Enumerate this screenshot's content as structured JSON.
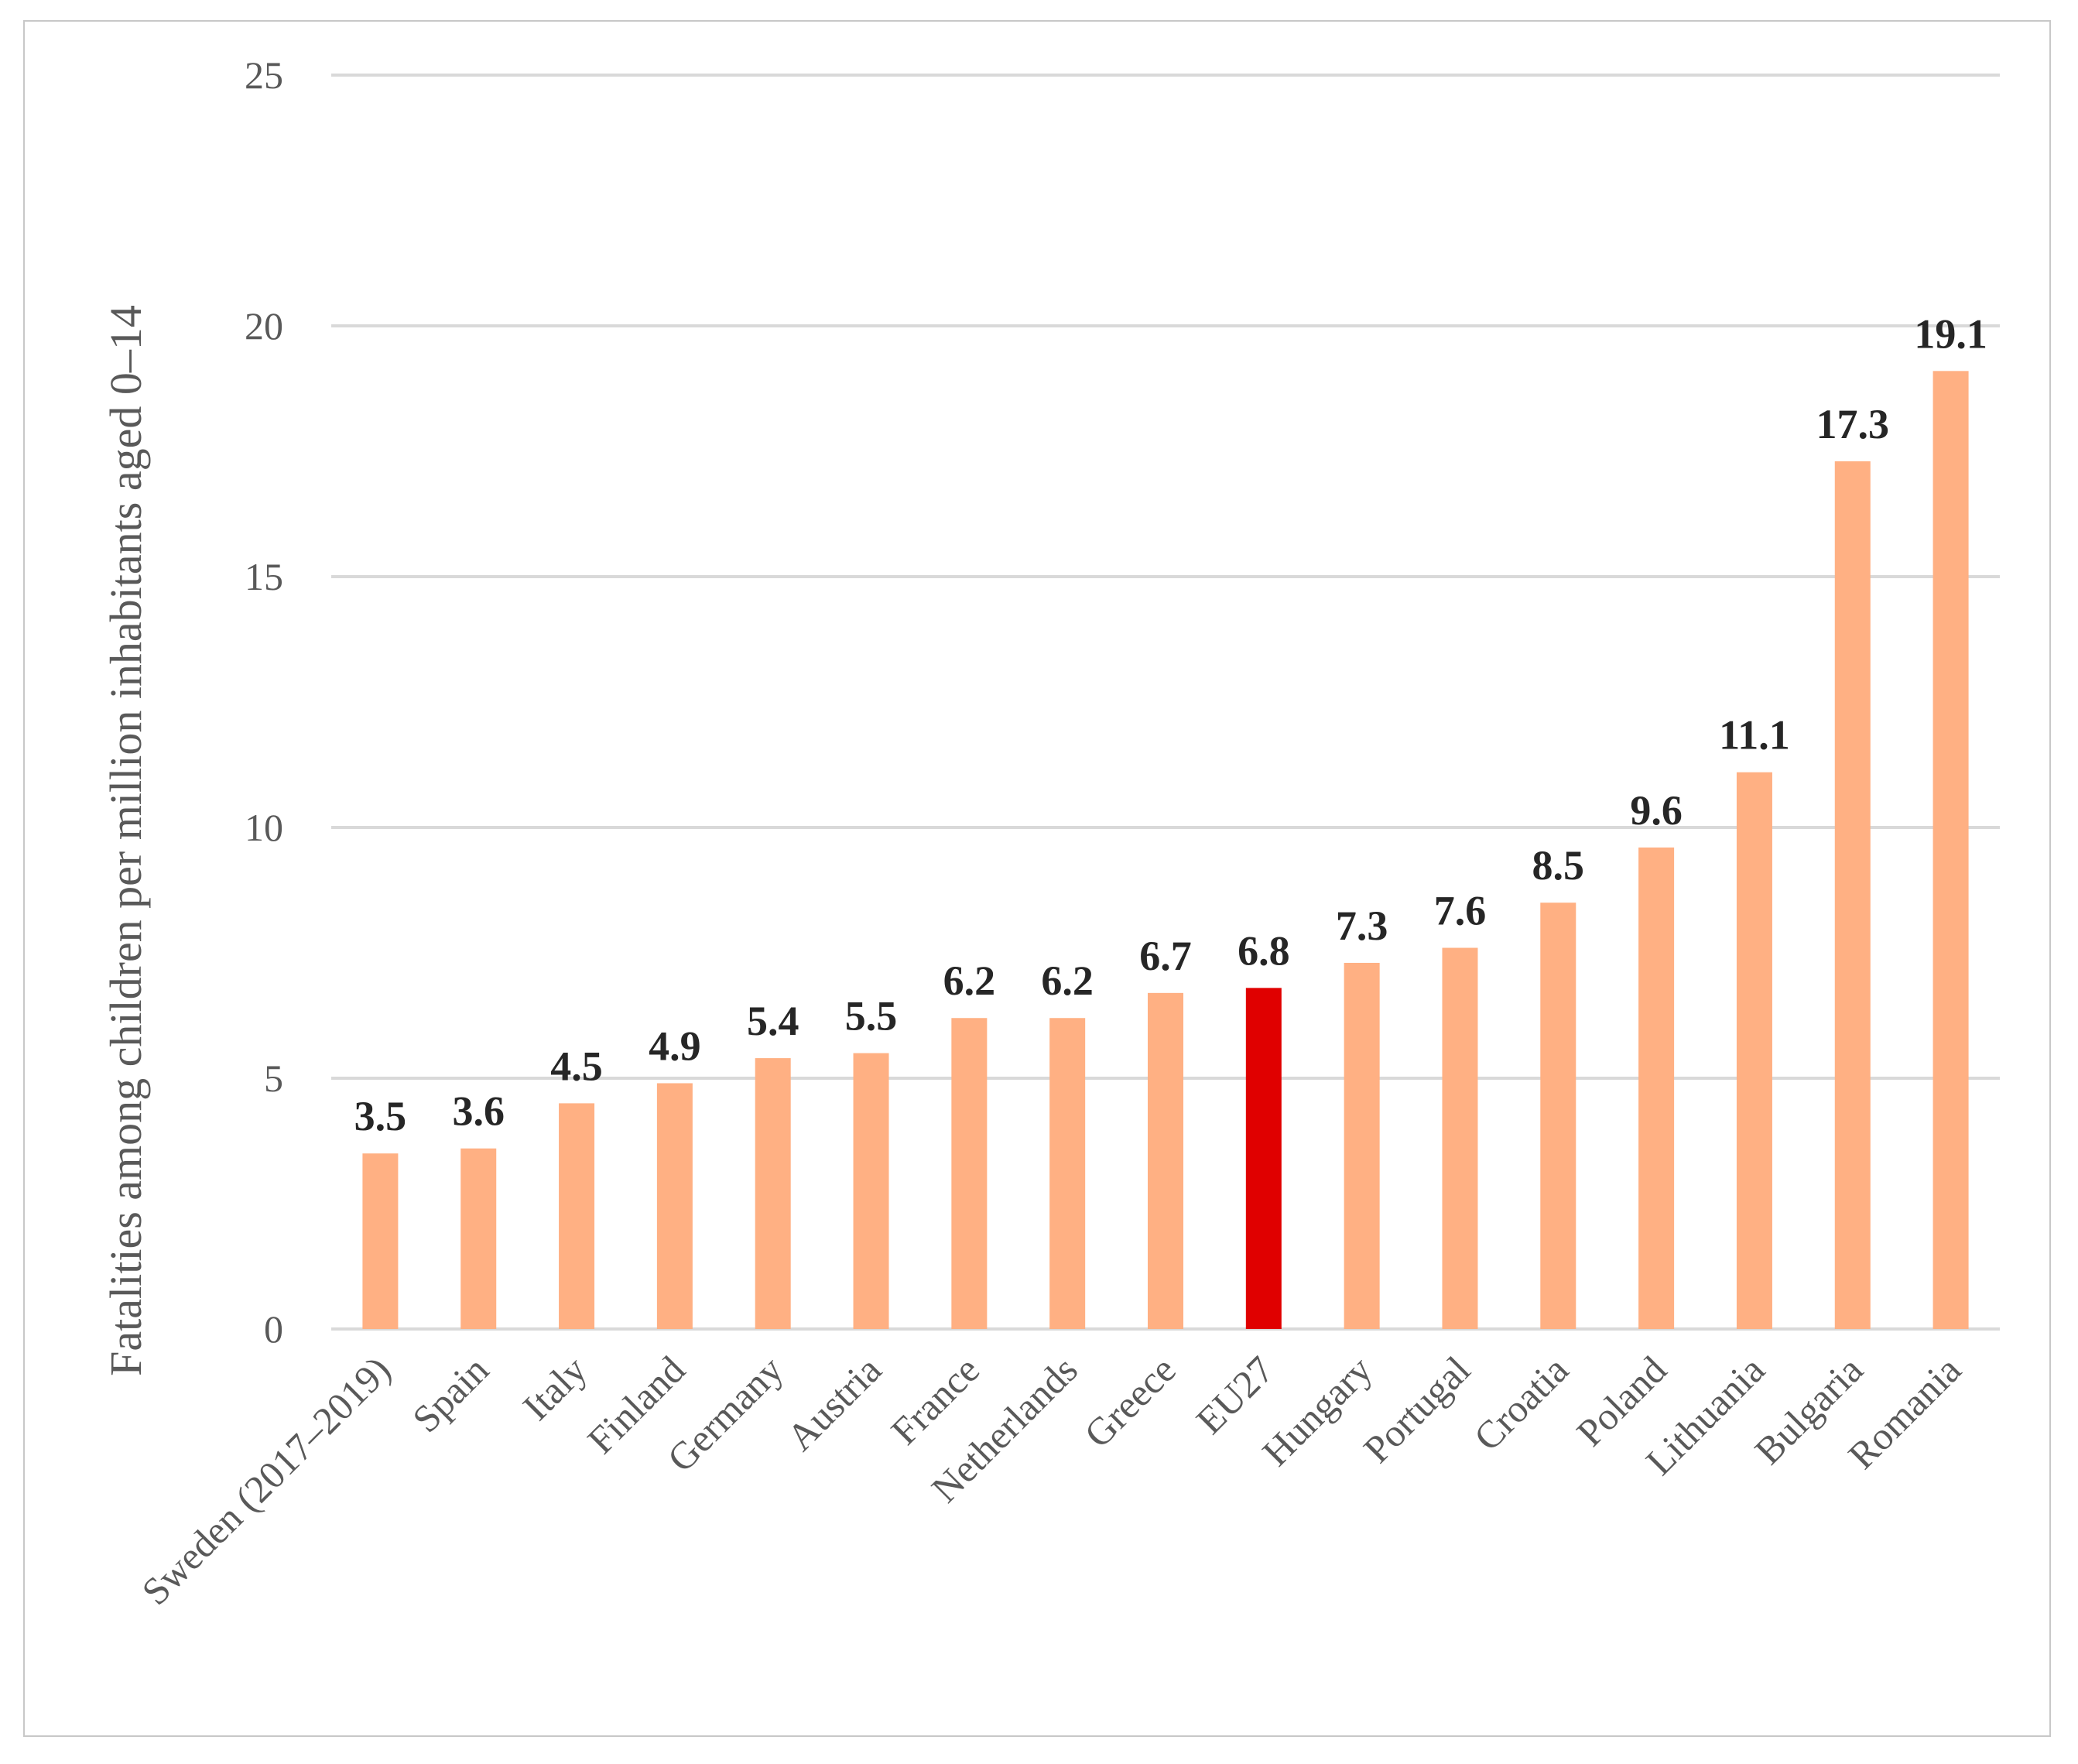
{
  "chart_data": {
    "type": "bar",
    "title": "",
    "xlabel": "",
    "ylabel": "Fatalities among children per million inhabitants aged 0–14",
    "ylim": [
      0,
      25
    ],
    "yticks": [
      0,
      5,
      10,
      15,
      20,
      25
    ],
    "grid": true,
    "categories": [
      "Sweden (2017–2019)",
      "Spain",
      "Italy",
      "Finland",
      "Germany",
      "Austria",
      "France",
      "Netherlands",
      "Greece",
      "EU27",
      "Hungary",
      "Portugal",
      "Croatia",
      "Poland",
      "Lithuania",
      "Bulgaria",
      "Romania"
    ],
    "values": [
      3.5,
      3.6,
      4.5,
      4.9,
      5.4,
      5.5,
      6.2,
      6.2,
      6.7,
      6.8,
      7.3,
      7.6,
      8.5,
      9.6,
      11.1,
      17.3,
      19.1
    ],
    "value_labels": [
      "3.5",
      "3.6",
      "4.5",
      "4.9",
      "5.4",
      "5.5",
      "6.2",
      "6.2",
      "6.7",
      "6.8",
      "7.3",
      "7.6",
      "8.5",
      "9.6",
      "11.1",
      "17.3",
      "19.1"
    ],
    "highlight_category": "EU27",
    "colors": {
      "bar": "#ffb083",
      "highlight": "#e00000",
      "grid": "#d9d9d9",
      "text": "#595959",
      "label": "#262626"
    }
  }
}
